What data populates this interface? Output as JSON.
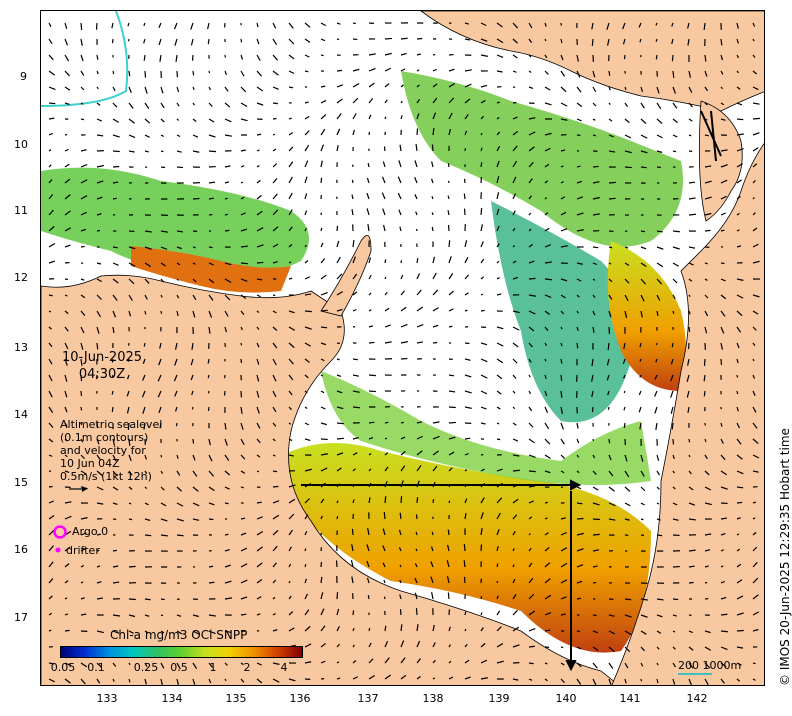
{
  "map": {
    "date": "10-Jun-2025",
    "time": "04:30Z",
    "y_ticks": [
      "9",
      "10",
      "11",
      "12",
      "13",
      "14",
      "15",
      "16",
      "17"
    ],
    "x_ticks": [
      "133",
      "134",
      "135",
      "136",
      "137",
      "138",
      "139",
      "140",
      "141",
      "142"
    ],
    "sealevel_note": [
      "Altimetric sealevel",
      "(0.1m contours)",
      "and velocity for",
      "10 Jun 04Z",
      "0.5m/s (1kt 12h)"
    ],
    "argo_label": "Argo 0",
    "drifter_label": "drifter",
    "legend_title": "Chl-a mg/m3 OCi SNPP",
    "legend_ticks": [
      "0.05",
      "0.1",
      "0.25",
      "0.5",
      "1",
      "2",
      "4"
    ],
    "scale_label": "200  1000m",
    "copyright": "© IMOS 20-Jun-2025 12:29:35 Hobart time",
    "colors": {
      "land": "#f8c8a0",
      "argo": "#ff00ff",
      "contour": "#40d0d0"
    }
  }
}
